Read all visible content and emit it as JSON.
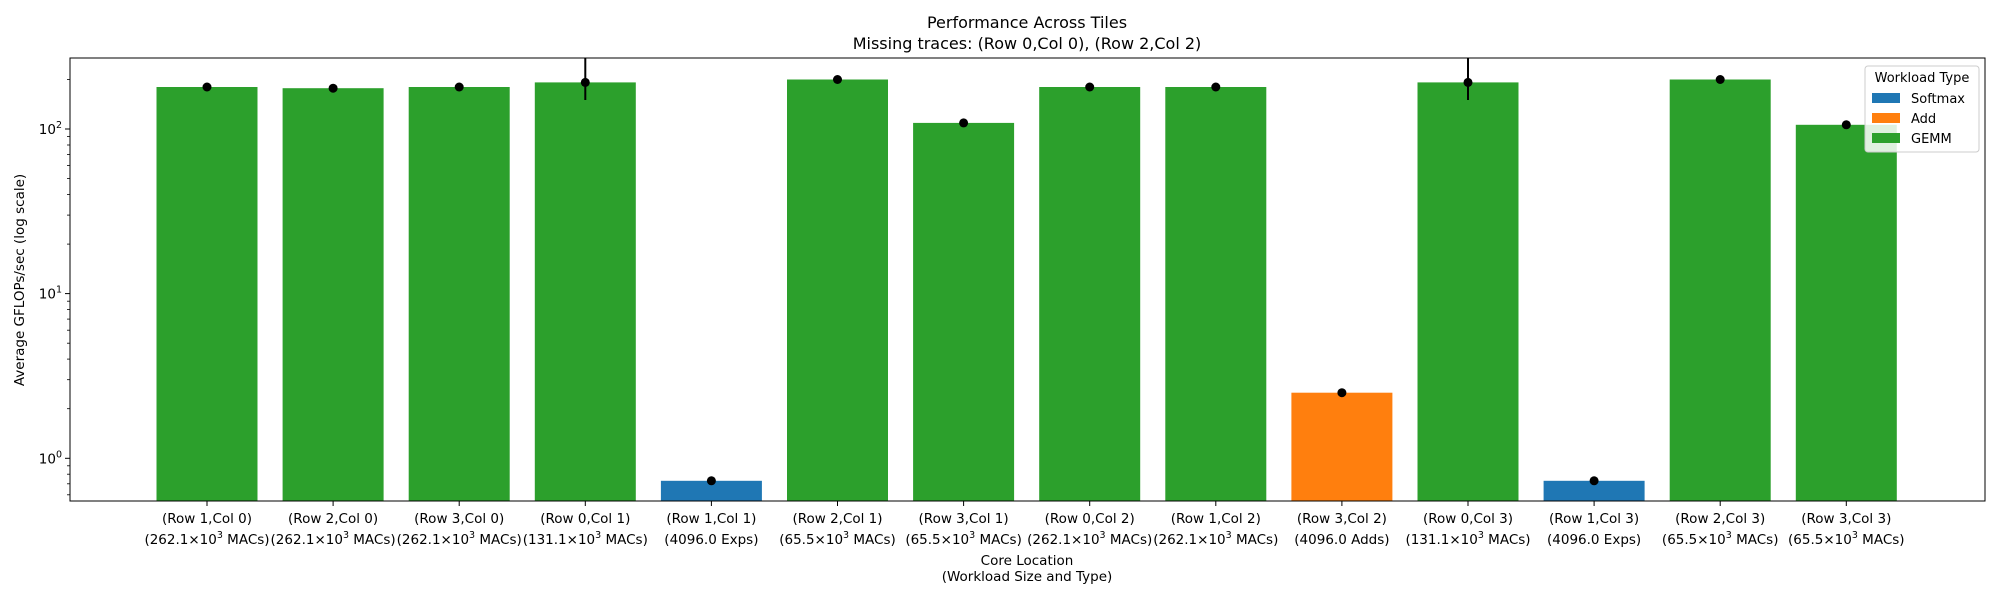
{
  "chart_data": {
    "type": "bar",
    "title": "Performance Across Tiles",
    "subtitle": "Missing traces: (Row 0,Col 0), (Row 2,Col 2)",
    "xlabel": "Core Location",
    "xlabel_sub": "(Workload Size and Type)",
    "ylabel": "Average GFLOPs/sec (log scale)",
    "yscale": "log",
    "ylim": [
      0.55,
      270
    ],
    "yticks": [
      {
        "value": 1,
        "base": "10",
        "exp": "0"
      },
      {
        "value": 10,
        "base": "10",
        "exp": "1"
      },
      {
        "value": 100,
        "base": "10",
        "exp": "2"
      }
    ],
    "grid": false,
    "legend": {
      "title": "Workload Type",
      "placement": "top-right",
      "entries": [
        {
          "name": "Softmax",
          "color": "#1f77b4"
        },
        {
          "name": "Add",
          "color": "#ff7f0e"
        },
        {
          "name": "GEMM",
          "color": "#2ca02c"
        }
      ]
    },
    "bars": [
      {
        "loc": "(Row 1,Col 0)",
        "size": "(262.1×10",
        "size_exp": "3",
        "size_unit": " MACs)",
        "type": "GEMM",
        "value": 180,
        "err": null
      },
      {
        "loc": "(Row 2,Col 0)",
        "size": "(262.1×10",
        "size_exp": "3",
        "size_unit": " MACs)",
        "type": "GEMM",
        "value": 177,
        "err": null
      },
      {
        "loc": "(Row 3,Col 0)",
        "size": "(262.1×10",
        "size_exp": "3",
        "size_unit": " MACs)",
        "type": "GEMM",
        "value": 180,
        "err": null
      },
      {
        "loc": "(Row 0,Col 1)",
        "size": "(131.1×10",
        "size_exp": "3",
        "size_unit": " MACs)",
        "type": "GEMM",
        "value": 192,
        "err": [
          150,
          280
        ]
      },
      {
        "loc": "(Row 1,Col 1)",
        "size": "(4096.0 Exps)",
        "size_exp": "",
        "size_unit": "",
        "type": "Softmax",
        "value": 0.73,
        "err": null
      },
      {
        "loc": "(Row 2,Col 1)",
        "size": "(65.5×10",
        "size_exp": "3",
        "size_unit": " MACs)",
        "type": "GEMM",
        "value": 200,
        "err": null
      },
      {
        "loc": "(Row 3,Col 1)",
        "size": "(65.5×10",
        "size_exp": "3",
        "size_unit": " MACs)",
        "type": "GEMM",
        "value": 109,
        "err": null
      },
      {
        "loc": "(Row 0,Col 2)",
        "size": "(262.1×10",
        "size_exp": "3",
        "size_unit": " MACs)",
        "type": "GEMM",
        "value": 180,
        "err": null
      },
      {
        "loc": "(Row 1,Col 2)",
        "size": "(262.1×10",
        "size_exp": "3",
        "size_unit": " MACs)",
        "type": "GEMM",
        "value": 180,
        "err": null
      },
      {
        "loc": "(Row 3,Col 2)",
        "size": "(4096.0 Adds)",
        "size_exp": "",
        "size_unit": "",
        "type": "Add",
        "value": 2.5,
        "err": null
      },
      {
        "loc": "(Row 0,Col 3)",
        "size": "(131.1×10",
        "size_exp": "3",
        "size_unit": " MACs)",
        "type": "GEMM",
        "value": 192,
        "err": [
          150,
          280
        ]
      },
      {
        "loc": "(Row 1,Col 3)",
        "size": "(4096.0 Exps)",
        "size_exp": "",
        "size_unit": "",
        "type": "Softmax",
        "value": 0.73,
        "err": null
      },
      {
        "loc": "(Row 2,Col 3)",
        "size": "(65.5×10",
        "size_exp": "3",
        "size_unit": " MACs)",
        "type": "GEMM",
        "value": 200,
        "err": null
      },
      {
        "loc": "(Row 3,Col 3)",
        "size": "(65.5×10",
        "size_exp": "3",
        "size_unit": " MACs)",
        "type": "GEMM",
        "value": 106,
        "err": null
      }
    ]
  }
}
